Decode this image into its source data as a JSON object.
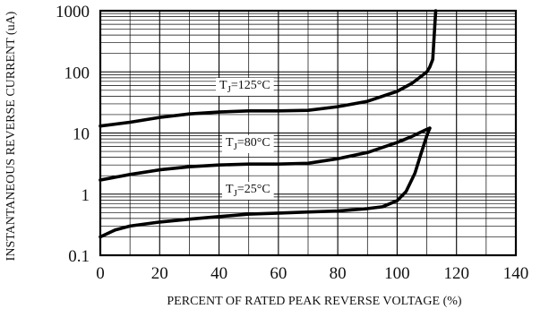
{
  "chart_data": {
    "type": "line",
    "xlabel": "PERCENT OF RATED PEAK REVERSE VOLTAGE (%)",
    "ylabel": "INSTANTANEOUS REVERSE CURRENT (uA)",
    "xlim": [
      0,
      140
    ],
    "ylim": [
      0.1,
      1000
    ],
    "y_scale": "log",
    "grid": true,
    "x_ticks": [
      "0",
      "20",
      "40",
      "60",
      "80",
      "100",
      "120",
      "140"
    ],
    "y_ticks": [
      "0.1",
      "1",
      "10",
      "100",
      "1000"
    ],
    "series": [
      {
        "name": "T J=125°C",
        "name_main": "T",
        "name_sub": "J",
        "name_rest": "=125°C",
        "x": [
          0,
          10,
          20,
          30,
          40,
          50,
          60,
          70,
          80,
          90,
          100,
          105,
          110,
          111,
          112,
          113
        ],
        "y": [
          13,
          15,
          18,
          20.5,
          22,
          23,
          23,
          23.5,
          27,
          33,
          48,
          65,
          100,
          120,
          160,
          1000
        ]
      },
      {
        "name": "T J=80°C",
        "name_main": "T",
        "name_sub": "J",
        "name_rest": "=80°C",
        "x": [
          0,
          10,
          20,
          30,
          40,
          50,
          60,
          70,
          80,
          90,
          100,
          105,
          110,
          111
        ],
        "y": [
          1.7,
          2.1,
          2.5,
          2.8,
          3.0,
          3.1,
          3.1,
          3.2,
          3.8,
          4.8,
          7.0,
          8.8,
          11.5,
          12
        ]
      },
      {
        "name": "T J=25°C",
        "name_main": "T",
        "name_sub": "J",
        "name_rest": "=25°C",
        "x": [
          0,
          5,
          10,
          20,
          30,
          40,
          50,
          60,
          70,
          80,
          90,
          95,
          100,
          103,
          106,
          108,
          110,
          111
        ],
        "y": [
          0.2,
          0.26,
          0.3,
          0.35,
          0.39,
          0.43,
          0.47,
          0.49,
          0.51,
          0.53,
          0.58,
          0.62,
          0.78,
          1.1,
          2.2,
          4.5,
          9,
          12
        ]
      }
    ]
  }
}
